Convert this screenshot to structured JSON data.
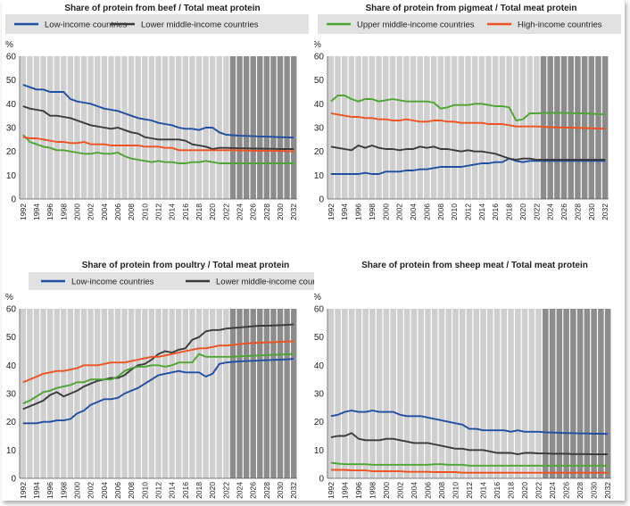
{
  "colors": {
    "low": "#1f4fa3",
    "lower_middle": "#3a3a3a",
    "upper_middle": "#4da532",
    "high": "#f0521f",
    "stripe": "#cfcfcf",
    "stripe_proj": "#8c8c8c",
    "legend_bg": "#e1e1e1"
  },
  "legend_labels": {
    "low": "Low-income countries",
    "lower_middle": "Lower middle-income countries",
    "upper_middle": "Upper middle-income countries",
    "high": "High-income countries"
  },
  "chart_data": [
    {
      "type": "line",
      "title": "Share of protein from beef / Total meat protein",
      "ylabel": "%",
      "ylim": [
        0,
        60
      ],
      "yticks": [
        0,
        10,
        20,
        30,
        40,
        50,
        60
      ],
      "x": [
        1992,
        1993,
        1994,
        1995,
        1996,
        1997,
        1998,
        1999,
        2000,
        2001,
        2002,
        2003,
        2004,
        2005,
        2006,
        2007,
        2008,
        2009,
        2010,
        2011,
        2012,
        2013,
        2014,
        2015,
        2016,
        2017,
        2018,
        2019,
        2020,
        2021,
        2022,
        2023,
        2024,
        2025,
        2026,
        2027,
        2028,
        2029,
        2030,
        2031,
        2032
      ],
      "xticks": [
        1992,
        1994,
        1996,
        1998,
        2000,
        2002,
        2004,
        2006,
        2008,
        2010,
        2012,
        2014,
        2016,
        2018,
        2020,
        2022,
        2024,
        2026,
        2028,
        2030,
        2032
      ],
      "projection_start": 2023,
      "series": [
        {
          "key": "low",
          "name": "Low-income countries",
          "values": [
            48,
            47,
            46,
            46,
            45,
            45,
            45,
            42,
            41,
            40.5,
            40,
            39,
            38,
            37.5,
            37,
            36,
            35,
            34,
            33.5,
            33,
            32,
            31.5,
            31,
            30,
            29.5,
            29.5,
            29,
            30,
            30,
            28,
            27,
            26.8,
            26.6,
            26.5,
            26.4,
            26.3,
            26.2,
            26.1,
            26,
            25.9,
            25.8
          ]
        },
        {
          "key": "lower_middle",
          "name": "Lower middle-income countries",
          "values": [
            39,
            38,
            37.5,
            37,
            35,
            35,
            34.5,
            34,
            33,
            32,
            31,
            30.5,
            30,
            29.5,
            30,
            29,
            28,
            27.5,
            26,
            25.5,
            25,
            25,
            25,
            25,
            24.5,
            23,
            22.5,
            22,
            21,
            21.5,
            21.5,
            21.4,
            21.3,
            21.3,
            21.2,
            21.2,
            21.1,
            21.1,
            21,
            21,
            21
          ]
        },
        {
          "key": "upper_middle",
          "name": "Upper middle-income countries",
          "values": [
            27,
            24,
            23,
            22,
            21.5,
            20.5,
            20.5,
            20,
            19.5,
            19,
            19,
            19.5,
            19,
            19,
            19.5,
            18,
            17,
            16.5,
            16,
            15.5,
            16,
            15.5,
            15.5,
            15,
            15,
            15.5,
            15.5,
            16,
            15.5,
            15,
            15,
            15,
            15,
            15,
            15,
            15,
            15,
            15,
            15,
            15,
            15
          ]
        },
        {
          "key": "high",
          "name": "High-income countries",
          "values": [
            26,
            25.5,
            25.5,
            25,
            24.5,
            24,
            24,
            23.5,
            23.5,
            24,
            23,
            23,
            23,
            22.5,
            22.5,
            22.5,
            22.5,
            22.5,
            22,
            22,
            22,
            21.5,
            21.5,
            20.5,
            20.5,
            20.5,
            20.5,
            20.5,
            20.5,
            20.5,
            20.5,
            20.5,
            20.4,
            20.4,
            20.3,
            20.3,
            20.2,
            20.2,
            20.2,
            20.1,
            20.1
          ]
        }
      ]
    },
    {
      "type": "line",
      "title": "Share of protein from pigmeat / Total meat protein",
      "ylabel": "%",
      "ylim": [
        0,
        60
      ],
      "yticks": [
        0,
        10,
        20,
        30,
        40,
        50,
        60
      ],
      "x": [
        1992,
        1993,
        1994,
        1995,
        1996,
        1997,
        1998,
        1999,
        2000,
        2001,
        2002,
        2003,
        2004,
        2005,
        2006,
        2007,
        2008,
        2009,
        2010,
        2011,
        2012,
        2013,
        2014,
        2015,
        2016,
        2017,
        2018,
        2019,
        2020,
        2021,
        2022,
        2023,
        2024,
        2025,
        2026,
        2027,
        2028,
        2029,
        2030,
        2031,
        2032
      ],
      "xticks": [
        1992,
        1994,
        1996,
        1998,
        2000,
        2002,
        2004,
        2006,
        2008,
        2010,
        2012,
        2014,
        2016,
        2018,
        2020,
        2022,
        2024,
        2026,
        2028,
        2030,
        2032
      ],
      "projection_start": 2023,
      "series": [
        {
          "key": "low",
          "name": "Low-income countries",
          "values": [
            10.5,
            10.5,
            10.5,
            10.5,
            10.5,
            11,
            10.5,
            10.5,
            11.5,
            11.5,
            11.5,
            12,
            12,
            12.5,
            12.5,
            13,
            13.5,
            13.5,
            13.5,
            13.5,
            14,
            14.5,
            15,
            15,
            15.5,
            15.5,
            17,
            16,
            15.5,
            16,
            16,
            16,
            16,
            16,
            16,
            16,
            16,
            16,
            16,
            16,
            16
          ]
        },
        {
          "key": "lower_middle",
          "name": "Lower middle-income countries",
          "values": [
            22,
            21.5,
            21,
            20.5,
            22.5,
            21.5,
            22.5,
            21.5,
            21,
            21,
            20.5,
            21,
            21,
            22,
            21.5,
            22,
            21,
            21,
            20.5,
            20,
            20.5,
            20,
            20,
            19.5,
            19,
            18,
            17,
            16.5,
            17,
            17,
            16.5,
            16.5,
            16.5,
            16.5,
            16.5,
            16.5,
            16.5,
            16.5,
            16.5,
            16.5,
            16.5
          ]
        },
        {
          "key": "upper_middle",
          "name": "Upper middle-income countries",
          "values": [
            41,
            43.5,
            43.5,
            42,
            41,
            42,
            42,
            41,
            41.5,
            42,
            41.5,
            41,
            41,
            41,
            41,
            40.5,
            38,
            38.5,
            39.5,
            39.5,
            39.5,
            40,
            40,
            39.5,
            39,
            39,
            38.5,
            33,
            33.5,
            36,
            36,
            36.2,
            36.2,
            36.2,
            36.2,
            36.1,
            36,
            36,
            35.8,
            35.7,
            35.5
          ]
        },
        {
          "key": "high",
          "name": "High-income countries",
          "values": [
            36,
            35.5,
            35,
            34.5,
            34.5,
            34,
            34,
            33.5,
            33.5,
            33,
            33,
            33.5,
            33,
            32.5,
            32.5,
            33,
            33,
            32.5,
            32.5,
            32,
            32,
            32,
            32,
            31.5,
            31.5,
            31.5,
            31,
            30.5,
            30.5,
            30.5,
            30.5,
            30.3,
            30.2,
            30.1,
            30,
            30,
            29.9,
            29.8,
            29.7,
            29.6,
            29.5
          ]
        }
      ]
    },
    {
      "type": "line",
      "title": "Share of protein from poultry / Total meat protein",
      "ylabel": "%",
      "ylim": [
        0,
        60
      ],
      "yticks": [
        0,
        10,
        20,
        30,
        40,
        50,
        60
      ],
      "x": [
        1992,
        1993,
        1994,
        1995,
        1996,
        1997,
        1998,
        1999,
        2000,
        2001,
        2002,
        2003,
        2004,
        2005,
        2006,
        2007,
        2008,
        2009,
        2010,
        2011,
        2012,
        2013,
        2014,
        2015,
        2016,
        2017,
        2018,
        2019,
        2020,
        2021,
        2022,
        2023,
        2024,
        2025,
        2026,
        2027,
        2028,
        2029,
        2030,
        2031,
        2032
      ],
      "xticks": [
        1992,
        1994,
        1996,
        1998,
        2000,
        2002,
        2004,
        2006,
        2008,
        2010,
        2012,
        2014,
        2016,
        2018,
        2020,
        2022,
        2024,
        2026,
        2028,
        2030,
        2032
      ],
      "projection_start": 2023,
      "series": [
        {
          "key": "low",
          "name": "Low-income countries",
          "values": [
            19.5,
            19.5,
            19.5,
            20,
            20,
            20.5,
            20.5,
            21,
            23,
            24,
            26,
            27,
            28,
            28,
            28.5,
            30,
            31,
            32,
            33.5,
            35,
            36.5,
            37,
            37.5,
            38,
            37.5,
            37.5,
            37.5,
            36,
            37,
            40.5,
            41,
            41.2,
            41.4,
            41.5,
            41.6,
            41.7,
            41.8,
            41.9,
            42,
            42.1,
            42.3
          ]
        },
        {
          "key": "lower_middle",
          "name": "Lower middle-income countries",
          "values": [
            24.5,
            25.5,
            26.5,
            27.5,
            29.5,
            30.5,
            29,
            30,
            31,
            32.5,
            33.5,
            34.5,
            35,
            35.5,
            35.5,
            36.5,
            38.5,
            40,
            40.5,
            42,
            44,
            45,
            44.5,
            45.5,
            46,
            49,
            50,
            52,
            52.5,
            52.5,
            53,
            53.2,
            53.4,
            53.6,
            53.8,
            54,
            54,
            54.1,
            54.2,
            54.3,
            54.5
          ]
        },
        {
          "key": "upper_middle",
          "name": "Upper middle-income countries",
          "values": [
            26.5,
            27.5,
            29,
            30.5,
            31,
            32,
            32.5,
            33,
            34,
            34,
            35,
            35,
            35,
            35,
            36,
            38,
            39,
            39.5,
            39.5,
            40,
            40,
            39.5,
            40,
            41,
            41,
            41,
            44,
            43,
            43,
            43,
            43,
            43,
            43.2,
            43.3,
            43.4,
            43.5,
            43.6,
            43.7,
            43.8,
            43.9,
            44
          ]
        },
        {
          "key": "high",
          "name": "High-income countries",
          "values": [
            34,
            35,
            36,
            37,
            37.5,
            38,
            38,
            38.5,
            39,
            40,
            40,
            40,
            40.5,
            41,
            41,
            41,
            41.5,
            42,
            42.5,
            43,
            43,
            43.5,
            44,
            44.5,
            45,
            45.5,
            46,
            46,
            46.5,
            47,
            47,
            47.2,
            47.5,
            47.7,
            47.9,
            48,
            48.1,
            48.2,
            48.3,
            48.4,
            48.5
          ]
        }
      ]
    },
    {
      "type": "line",
      "title": "Share of protein from sheep meat / Total meat protein",
      "ylabel": "%",
      "ylim": [
        0,
        60
      ],
      "yticks": [
        0,
        10,
        20,
        30,
        40,
        50,
        60
      ],
      "x": [
        1992,
        1993,
        1994,
        1995,
        1996,
        1997,
        1998,
        1999,
        2000,
        2001,
        2002,
        2003,
        2004,
        2005,
        2006,
        2007,
        2008,
        2009,
        2010,
        2011,
        2012,
        2013,
        2014,
        2015,
        2016,
        2017,
        2018,
        2019,
        2020,
        2021,
        2022,
        2023,
        2024,
        2025,
        2026,
        2027,
        2028,
        2029,
        2030,
        2031,
        2032
      ],
      "xticks": [
        1992,
        1994,
        1996,
        1998,
        2000,
        2002,
        2004,
        2006,
        2008,
        2010,
        2012,
        2014,
        2016,
        2018,
        2020,
        2022,
        2024,
        2026,
        2028,
        2030,
        2032
      ],
      "projection_start": 2023,
      "series": [
        {
          "key": "low",
          "name": "Low-income countries",
          "values": [
            22,
            22.5,
            23.5,
            24,
            23.5,
            23.5,
            24,
            23.5,
            23.5,
            23.5,
            22.5,
            22,
            22,
            22,
            21.5,
            21,
            20.5,
            20,
            19.5,
            19,
            17.5,
            17.5,
            17,
            17,
            17,
            17,
            16.5,
            17,
            16.5,
            16.5,
            16.5,
            16.3,
            16.2,
            16.1,
            16,
            16,
            15.9,
            15.9,
            15.8,
            15.8,
            15.7
          ]
        },
        {
          "key": "lower_middle",
          "name": "Lower middle-income countries",
          "values": [
            14.5,
            15,
            15,
            16,
            14,
            13.5,
            13.5,
            13.5,
            14,
            14,
            13.5,
            13,
            12.5,
            12.5,
            12.5,
            12,
            11.5,
            11,
            10.5,
            10.5,
            10,
            10,
            10,
            9.5,
            9,
            9,
            9,
            8.5,
            9,
            9,
            8.8,
            8.8,
            8.7,
            8.7,
            8.7,
            8.6,
            8.6,
            8.6,
            8.5,
            8.5,
            8.5
          ]
        },
        {
          "key": "upper_middle",
          "name": "Upper middle-income countries",
          "values": [
            5.5,
            5.2,
            5,
            5,
            5,
            5,
            4.8,
            4.8,
            4.8,
            4.8,
            4.8,
            4.8,
            4.8,
            4.8,
            4.8,
            5,
            5,
            4.8,
            4.8,
            4.8,
            4.5,
            4.5,
            4.5,
            4.5,
            4.5,
            4.5,
            4.5,
            4.5,
            4.5,
            4.5,
            4.5,
            4.5,
            4.5,
            4.5,
            4.5,
            4.5,
            4.5,
            4.5,
            4.5,
            4.5,
            4.5
          ]
        },
        {
          "key": "high",
          "name": "High-income countries",
          "values": [
            3,
            3,
            3,
            2.8,
            2.8,
            2.8,
            2.5,
            2.5,
            2.5,
            2.5,
            2.5,
            2.3,
            2.3,
            2.3,
            2.3,
            2.2,
            2.2,
            2.2,
            2.2,
            2,
            2,
            2,
            2,
            2,
            2,
            2,
            2,
            2,
            2,
            2,
            2,
            2,
            2,
            2,
            2,
            2,
            2,
            2,
            2,
            2,
            2
          ]
        }
      ]
    }
  ]
}
